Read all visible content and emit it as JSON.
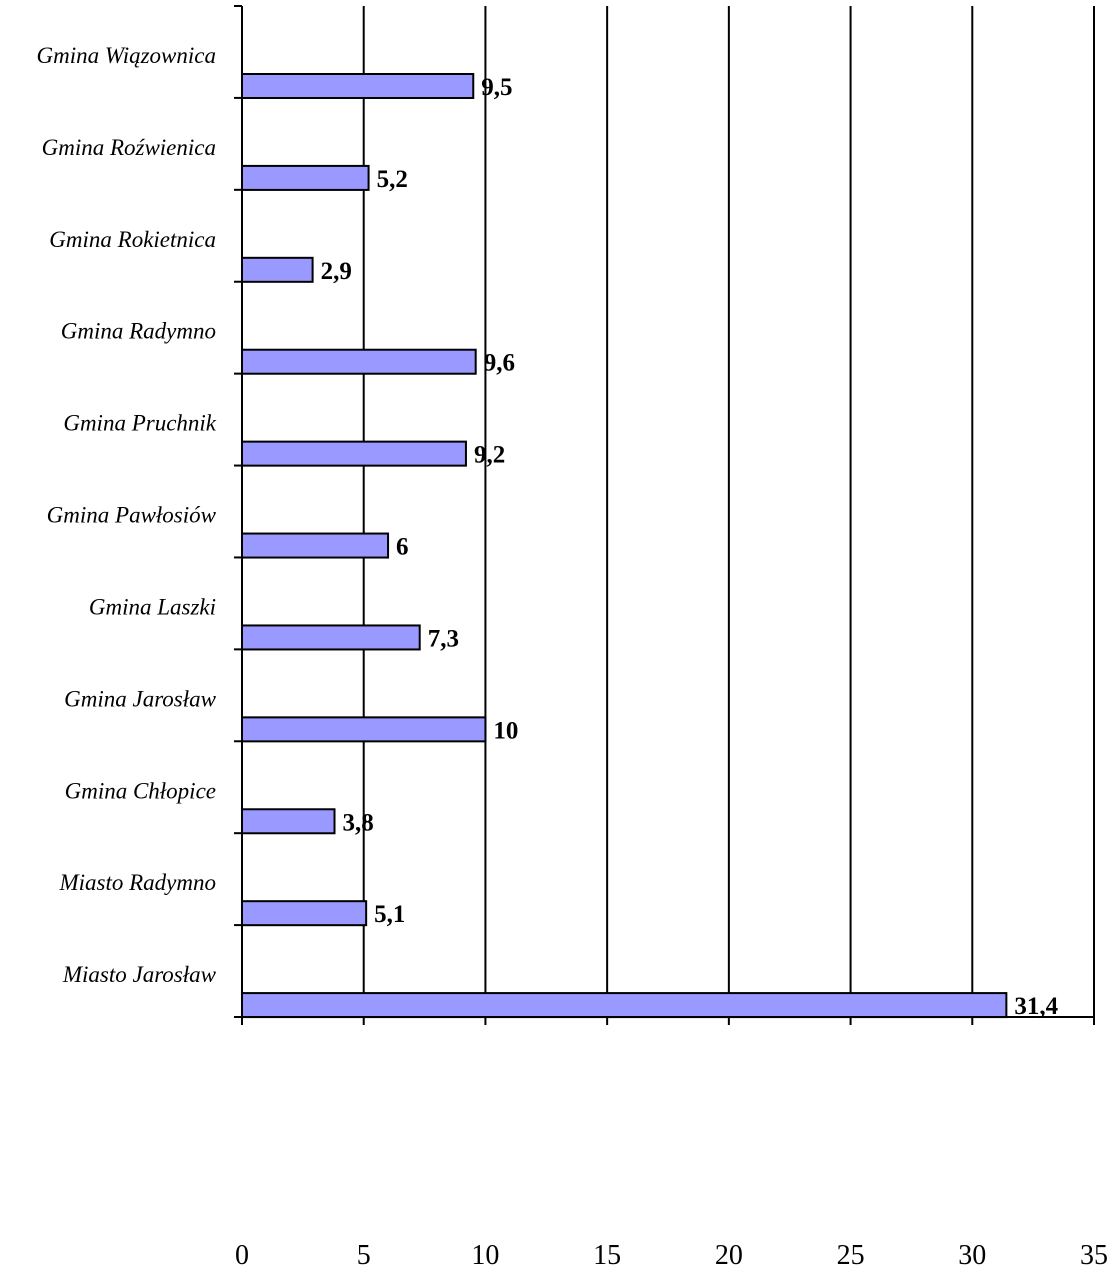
{
  "chart_data": {
    "type": "bar",
    "orientation": "horizontal",
    "categories": [
      "Gmina Wiązownica",
      "Gmina Roźwienica",
      "Gmina Rokietnica",
      "Gmina Radymno",
      "Gmina Pruchnik",
      "Gmina Pawłosiów",
      "Gmina Laszki",
      "Gmina Jarosław",
      "Gmina Chłopice",
      "Miasto Radymno",
      "Miasto Jarosław"
    ],
    "values": [
      9.5,
      5.2,
      2.9,
      9.6,
      9.2,
      6,
      7.3,
      10,
      3.8,
      5.1,
      31.4
    ],
    "value_labels": [
      "9,5",
      "5,2",
      "2,9",
      "9,6",
      "9,2",
      "6",
      "7,3",
      "10",
      "3,8",
      "5,1",
      "31,4"
    ],
    "x_ticks": [
      "0",
      "5",
      "10",
      "15",
      "20",
      "25",
      "30",
      "35"
    ],
    "xlim": [
      0,
      35
    ],
    "grid": "vertical",
    "legend": "none",
    "title": "",
    "xlabel": "",
    "ylabel": "",
    "colors": {
      "bar_fill": "#9999ff",
      "bar_stroke": "#000000",
      "grid": "#000000",
      "axis": "#000000"
    }
  }
}
